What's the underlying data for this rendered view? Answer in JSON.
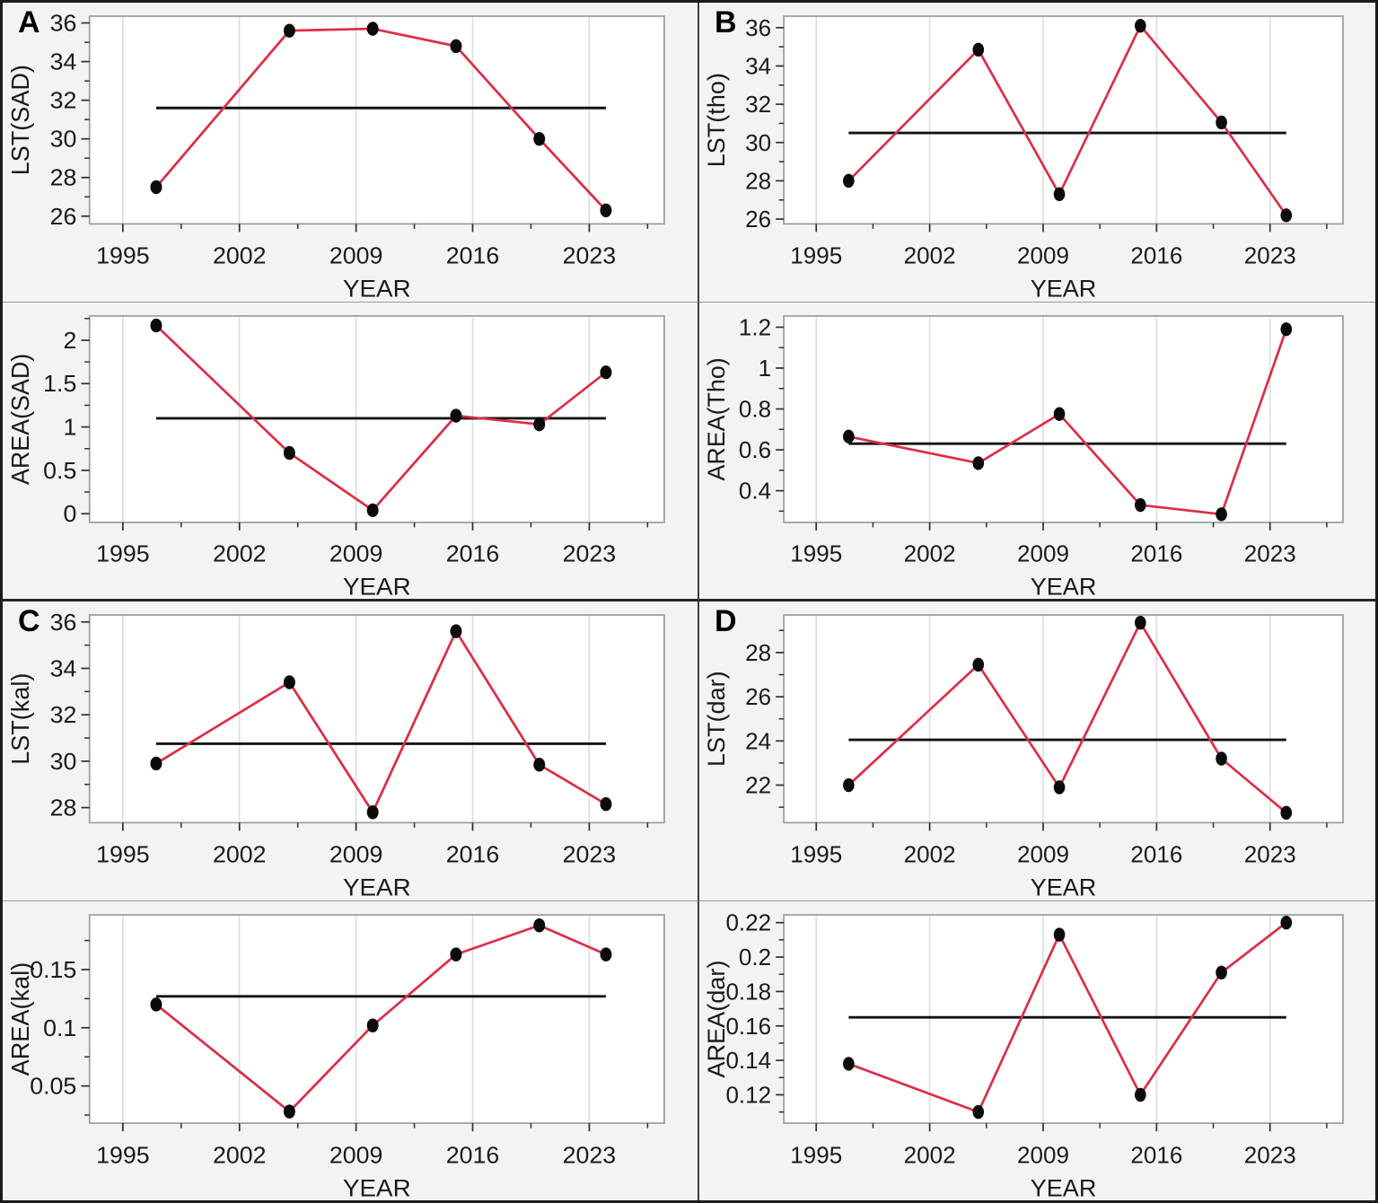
{
  "colors": {
    "series_line": "#DC2E46",
    "marker": "#0b0b0b",
    "mean_line": "#121212",
    "gridline": "#dedede",
    "plot_frame": "#9c9c9c",
    "tick": "#2f2f2f",
    "plot_bg": "#ffffff",
    "panel_bg": "#f3f3f1",
    "outer_border": "#1c1c1c"
  },
  "axis_shared": {
    "xlabel": "YEAR",
    "xticks": [
      1995,
      2002,
      2009,
      2016,
      2023
    ],
    "xtick_labels": [
      "1995",
      "2002",
      "2009",
      "2016",
      "2023"
    ],
    "xlim": [
      1993,
      2027.5
    ],
    "grid": "vertical-major-only",
    "legend": "none"
  },
  "chart_data": [
    {
      "type": "line",
      "panel_label": "A",
      "ylabel": "LST(SAD)",
      "xlabel": "YEAR",
      "x": [
        1997,
        2005,
        2010,
        2015,
        2020,
        2024
      ],
      "values": [
        27.5,
        35.6,
        35.7,
        34.8,
        30.0,
        26.3
      ],
      "mean_line": 31.6,
      "ytick_vals": [
        26,
        28,
        30,
        32,
        34,
        36
      ],
      "ytick_labels": [
        "26",
        "28",
        "30",
        "32",
        "34",
        "36"
      ],
      "ylim": [
        25.6,
        36.35
      ]
    },
    {
      "type": "line",
      "panel_label": "B",
      "ylabel": "LST(tho)",
      "xlabel": "YEAR",
      "x": [
        1997,
        2005,
        2010,
        2015,
        2020,
        2024
      ],
      "values": [
        28.0,
        34.85,
        27.3,
        36.1,
        31.05,
        26.2
      ],
      "mean_line": 30.5,
      "ytick_vals": [
        26,
        28,
        30,
        32,
        34,
        36
      ],
      "ytick_labels": [
        "26",
        "28",
        "30",
        "32",
        "34",
        "36"
      ],
      "ylim": [
        25.75,
        36.6
      ]
    },
    {
      "type": "line",
      "panel_label": "",
      "ylabel": "AREA(SAD)",
      "xlabel": "YEAR",
      "x": [
        1997,
        2005,
        2010,
        2015,
        2020,
        2024
      ],
      "values": [
        2.17,
        0.7,
        0.04,
        1.13,
        1.03,
        1.63
      ],
      "mean_line": 1.1,
      "ytick_vals": [
        0,
        0.5,
        1,
        1.5,
        2
      ],
      "ytick_labels": [
        "0",
        "0.5",
        "1",
        "1.5",
        "2"
      ],
      "ylim": [
        -0.1,
        2.28
      ]
    },
    {
      "type": "line",
      "panel_label": "",
      "ylabel": "AREA(Tho)",
      "xlabel": "YEAR",
      "x": [
        1997,
        2005,
        2010,
        2015,
        2020,
        2024
      ],
      "values": [
        0.665,
        0.535,
        0.775,
        0.33,
        0.285,
        1.19
      ],
      "mean_line": 0.63,
      "ytick_vals": [
        0.4,
        0.6,
        0.8,
        1,
        1.2
      ],
      "ytick_labels": [
        "0.4",
        "0.6",
        "0.8",
        "1",
        "1.2"
      ],
      "ylim": [
        0.245,
        1.255
      ]
    },
    {
      "type": "line",
      "panel_label": "C",
      "ylabel": "LST(kal)",
      "xlabel": "YEAR",
      "x": [
        1997,
        2005,
        2010,
        2015,
        2020,
        2024
      ],
      "values": [
        29.9,
        33.4,
        27.8,
        35.6,
        29.85,
        28.15
      ],
      "mean_line": 30.75,
      "ytick_vals": [
        28,
        30,
        32,
        34,
        36
      ],
      "ytick_labels": [
        "28",
        "30",
        "32",
        "34",
        "36"
      ],
      "ylim": [
        27.35,
        36.3
      ]
    },
    {
      "type": "line",
      "panel_label": "D",
      "ylabel": "LST(dar)",
      "xlabel": "YEAR",
      "x": [
        1997,
        2005,
        2010,
        2015,
        2020,
        2024
      ],
      "values": [
        22.0,
        27.45,
        21.9,
        29.35,
        23.2,
        20.75
      ],
      "mean_line": 24.05,
      "ytick_vals": [
        22,
        24,
        26,
        28
      ],
      "ytick_labels": [
        "22",
        "24",
        "26",
        "28"
      ],
      "ylim": [
        20.3,
        29.7
      ]
    },
    {
      "type": "line",
      "panel_label": "",
      "ylabel": "AREA(kal)",
      "xlabel": "YEAR",
      "x": [
        1997,
        2005,
        2010,
        2015,
        2020,
        2024
      ],
      "values": [
        0.12,
        0.028,
        0.102,
        0.163,
        0.188,
        0.163
      ],
      "mean_line": 0.127,
      "ytick_vals": [
        0.05,
        0.1,
        0.15
      ],
      "ytick_labels": [
        "0.05",
        "0.1",
        "0.15"
      ],
      "ylim": [
        0.018,
        0.197
      ]
    },
    {
      "type": "line",
      "panel_label": "",
      "ylabel": "AREA(dar)",
      "xlabel": "YEAR",
      "x": [
        1997,
        2005,
        2010,
        2015,
        2020,
        2024
      ],
      "values": [
        0.138,
        0.11,
        0.213,
        0.12,
        0.191,
        0.22
      ],
      "mean_line": 0.165,
      "ytick_vals": [
        0.12,
        0.14,
        0.16,
        0.18,
        0.2,
        0.22
      ],
      "ytick_labels": [
        "0.12",
        "0.14",
        "0.16",
        "0.18",
        "0.2",
        "0.22"
      ],
      "ylim": [
        0.1035,
        0.2245
      ]
    }
  ]
}
